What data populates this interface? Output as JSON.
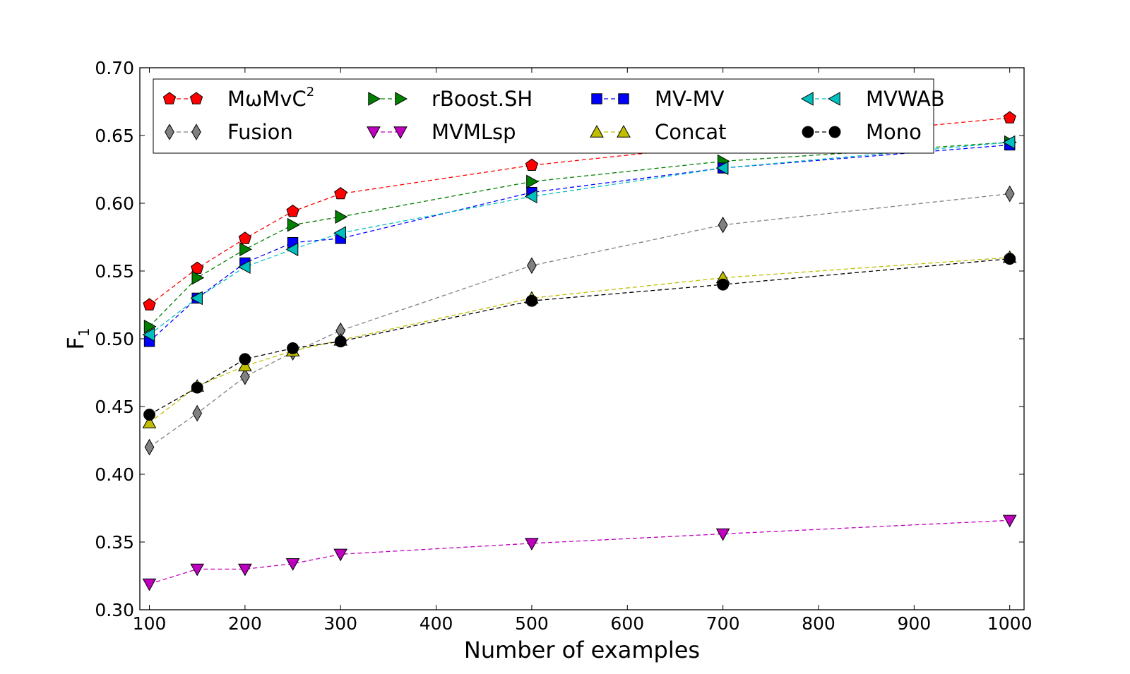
{
  "chart_data": {
    "type": "line",
    "title": "",
    "xlabel": "Number of examples",
    "ylabel": "F",
    "ylabel_subscript": "1",
    "xlim": [
      90,
      1015
    ],
    "ylim": [
      0.3,
      0.7
    ],
    "xticks": [
      100,
      200,
      300,
      400,
      500,
      600,
      700,
      800,
      900,
      1000
    ],
    "yticks": [
      0.3,
      0.35,
      0.4,
      0.45,
      0.5,
      0.55,
      0.6,
      0.65,
      0.7
    ],
    "grid": false,
    "legend_placement": "top",
    "legend_columns": 4,
    "x": [
      100,
      150,
      200,
      250,
      300,
      500,
      700,
      1000
    ],
    "series": [
      {
        "name": "MωMvC",
        "name_superscript": "2",
        "marker": "pentagon",
        "color": "#ff0000",
        "values": [
          0.525,
          0.552,
          0.574,
          0.594,
          0.607,
          0.628,
          0.643,
          0.663
        ]
      },
      {
        "name": "Fusion",
        "marker": "diamond",
        "color": "#808080",
        "values": [
          0.42,
          0.445,
          0.472,
          0.49,
          0.506,
          0.554,
          0.584,
          0.607
        ]
      },
      {
        "name": "rBoost.SH",
        "marker": "triangle-right",
        "color": "#008000",
        "values": [
          0.509,
          0.545,
          0.566,
          0.584,
          0.59,
          0.616,
          0.631,
          0.645
        ]
      },
      {
        "name": "MVMLsp",
        "marker": "triangle-down",
        "color": "#bf00bf",
        "values": [
          0.319,
          0.33,
          0.33,
          0.334,
          0.341,
          0.349,
          0.356,
          0.366
        ]
      },
      {
        "name": "MV-MV",
        "marker": "square",
        "color": "#0000ff",
        "values": [
          0.498,
          0.53,
          0.556,
          0.571,
          0.574,
          0.608,
          0.626,
          0.643
        ]
      },
      {
        "name": "Concat",
        "marker": "triangle-up",
        "color": "#bfbf00",
        "values": [
          0.438,
          0.465,
          0.48,
          0.491,
          0.499,
          0.53,
          0.545,
          0.56
        ]
      },
      {
        "name": "MVWAB",
        "marker": "triangle-left",
        "color": "#00bfbf",
        "values": [
          0.503,
          0.53,
          0.553,
          0.566,
          0.578,
          0.605,
          0.626,
          0.645
        ]
      },
      {
        "name": "Mono",
        "marker": "circle",
        "color": "#000000",
        "values": [
          0.444,
          0.464,
          0.485,
          0.493,
          0.498,
          0.528,
          0.54,
          0.559
        ]
      }
    ]
  }
}
